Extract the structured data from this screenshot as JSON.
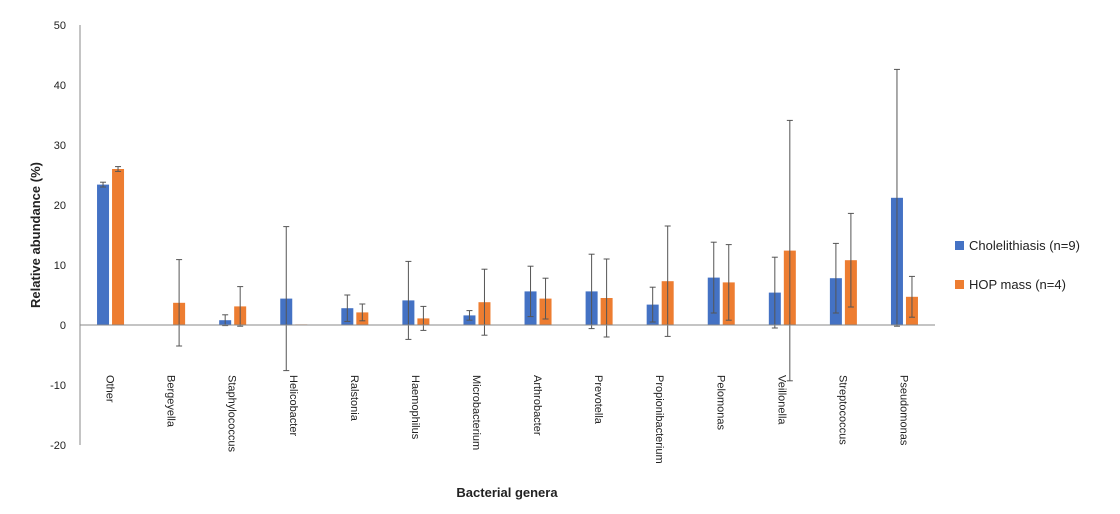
{
  "chart_data": {
    "type": "bar",
    "ylabel": "Relative abundance (%)",
    "xlabel": "Bacterial genera",
    "ylim": [
      -20,
      50
    ],
    "yticks": [
      50,
      40,
      30,
      20,
      10,
      0,
      -10,
      -20
    ],
    "grid": false,
    "legend_position": "right",
    "categories": [
      "Other",
      "Bergeyella",
      "Staphylococcus",
      "Helicobacter",
      "Ralstonia",
      "Haemophilus",
      "Microbacterium",
      "Arthrobacter",
      "Prevotella",
      "Propionibacterium",
      "Pelomonas",
      "Veillonella",
      "Streptococcus",
      "Pseudomonas"
    ],
    "series": [
      {
        "name": "Cholelithiasis (n=9)",
        "color": "#4472C4",
        "values": [
          23.4,
          0,
          0.8,
          4.4,
          2.8,
          4.1,
          1.6,
          5.6,
          5.6,
          3.4,
          7.9,
          5.4,
          7.8,
          21.2
        ],
        "errors": [
          0.4,
          0,
          0.9,
          12.0,
          2.2,
          6.5,
          0.8,
          4.2,
          6.2,
          2.9,
          5.9,
          5.9,
          5.8,
          21.4
        ]
      },
      {
        "name": "HOP mass (n=4)",
        "color": "#ED7D31",
        "values": [
          26.0,
          3.7,
          3.1,
          0.1,
          2.1,
          1.1,
          3.8,
          4.4,
          4.5,
          7.3,
          7.1,
          12.4,
          10.8,
          4.7
        ],
        "errors": [
          0.4,
          7.2,
          3.3,
          0,
          1.4,
          2.0,
          5.5,
          3.4,
          6.5,
          9.2,
          6.3,
          21.7,
          7.8,
          3.4
        ]
      }
    ]
  }
}
